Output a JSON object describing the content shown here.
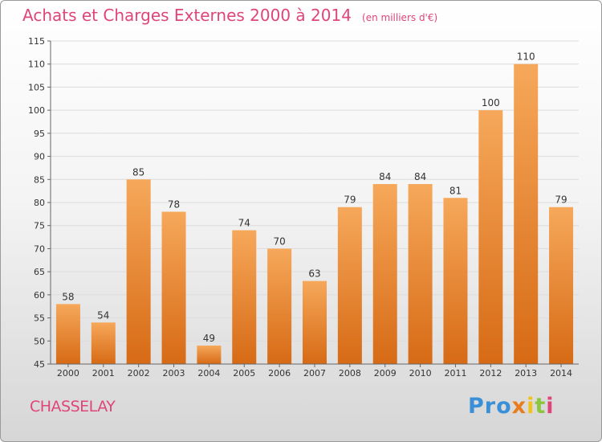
{
  "header": {
    "title": "Achats et Charges Externes 2000 à 2014",
    "unit": "(en milliers d'€)"
  },
  "footer": {
    "commune": "CHASSELAY",
    "logo": [
      "Pro",
      "x",
      "i",
      "t",
      "i"
    ]
  },
  "colors": {
    "accent": "#e0457a",
    "bar_top": "#f6a85a",
    "bar_bottom": "#d76a15"
  },
  "chart_data": {
    "type": "bar",
    "title": "Achats et Charges Externes 2000 à 2014",
    "subtitle": "(en milliers d'€)",
    "categories": [
      "2000",
      "2001",
      "2002",
      "2003",
      "2004",
      "2005",
      "2006",
      "2007",
      "2008",
      "2009",
      "2010",
      "2011",
      "2012",
      "2013",
      "2014"
    ],
    "values": [
      58,
      54,
      85,
      78,
      49,
      74,
      70,
      63,
      79,
      84,
      84,
      81,
      100,
      110,
      79
    ],
    "ylim": [
      45,
      115
    ],
    "yticks": [
      45,
      50,
      55,
      60,
      65,
      70,
      75,
      80,
      85,
      90,
      95,
      100,
      105,
      110,
      115
    ],
    "grid": true,
    "legend": "none"
  }
}
